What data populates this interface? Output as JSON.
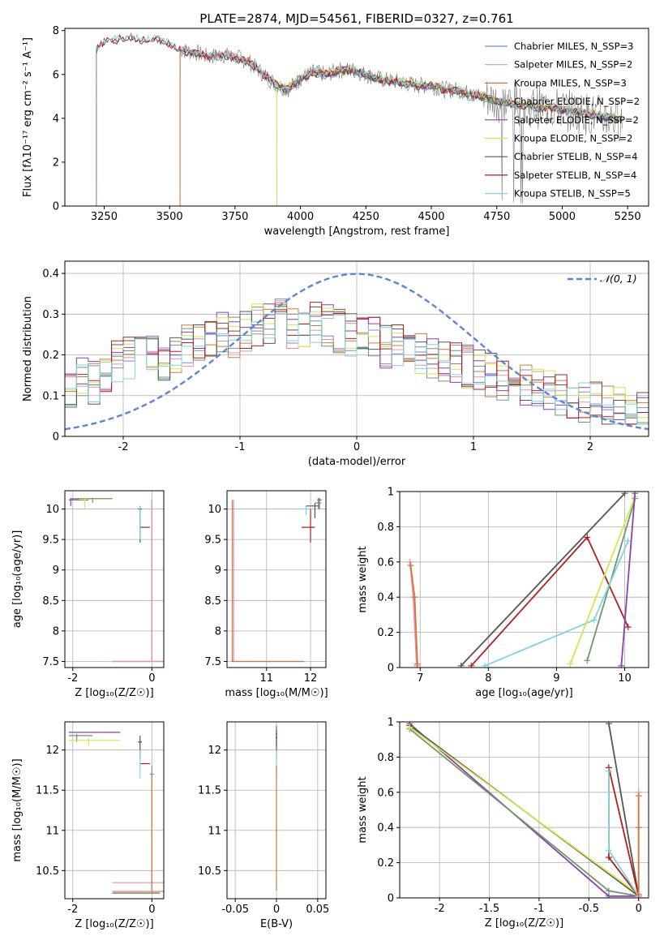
{
  "figure": {
    "title": "PLATE=2874, MJD=54561, FIBERID=0327, z=0.761"
  },
  "chart_data": [
    {
      "type": "line",
      "panel": "spectrum",
      "xlabel": "wavelength [Angstrom, rest frame]",
      "ylabel": "Flux [fλ10⁻¹⁷ erg cm⁻² s⁻¹ A⁻¹]",
      "xlim": [
        3100,
        5330
      ],
      "ylim": [
        0,
        8.1
      ],
      "xticks": [
        3250,
        3500,
        3750,
        4000,
        4250,
        4500,
        4750,
        5000,
        5250
      ],
      "yticks": [
        0,
        2,
        4,
        6,
        8
      ],
      "legend_position": "top-right",
      "grid": false,
      "series": [
        {
          "name": "Chabrier MILES, N_SSP=3",
          "color": "#6f8fd6",
          "start": 3540
        },
        {
          "name": "Salpeter MILES, N_SSP=2",
          "color": "#e58fb0",
          "start": 3540
        },
        {
          "name": "Kroupa MILES, N_SSP=3",
          "color": "#d07a3a",
          "start": 3540
        },
        {
          "name": "Chabrier ELODIE, N_SSP=2",
          "color": "#6a9a6a",
          "start": 3910
        },
        {
          "name": "Salpeter ELODIE, N_SSP=2",
          "color": "#8e3fb0",
          "start": 3910
        },
        {
          "name": "Kroupa ELODIE, N_SSP=2",
          "color": "#d6e64a",
          "start": 3910
        },
        {
          "name": "Chabrier STELIB, N_SSP=4",
          "color": "#555555",
          "start": 3220
        },
        {
          "name": "Salpeter STELIB, N_SSP=4",
          "color": "#b51d1d",
          "start": 3220
        },
        {
          "name": "Kroupa STELIB, N_SSP=5",
          "color": "#7fd3e0",
          "start": 3220
        }
      ],
      "continuum": {
        "x": [
          3220,
          3250,
          3300,
          3350,
          3400,
          3450,
          3500,
          3550,
          3600,
          3650,
          3700,
          3750,
          3800,
          3850,
          3900,
          3950,
          4000,
          4050,
          4100,
          4150,
          4200,
          4250,
          4300,
          4350,
          4400,
          4450,
          4500,
          4550,
          4600,
          4650,
          4700,
          4750,
          4800,
          4850,
          4900,
          4950,
          5000,
          5050,
          5100,
          5150,
          5200,
          5230
        ],
        "y": [
          7.1,
          7.5,
          7.6,
          7.7,
          7.6,
          7.6,
          7.4,
          7.1,
          7.0,
          6.8,
          6.9,
          6.8,
          6.6,
          6.1,
          5.6,
          5.3,
          5.8,
          6.1,
          6.0,
          6.2,
          6.2,
          6.0,
          5.8,
          5.7,
          5.6,
          5.5,
          5.5,
          5.3,
          5.3,
          5.1,
          5.0,
          4.8,
          4.7,
          4.6,
          4.5,
          4.5,
          4.4,
          4.3,
          4.2,
          4.1,
          4.0,
          3.9
        ]
      },
      "data_note": ""
    },
    {
      "type": "line",
      "panel": "residuals",
      "xlabel": "(data-model)/error",
      "ylabel": "Normed distribution",
      "xlim": [
        -2.5,
        2.5
      ],
      "ylim": [
        0,
        0.43
      ],
      "xticks": [
        -2,
        -1,
        0,
        1,
        2
      ],
      "yticks": [
        0.0,
        0.1,
        0.2,
        0.3,
        0.4
      ],
      "grid": true,
      "legend_position": "top-right",
      "gaussian_label": "𝒩(0, 1)",
      "gaussian_color": "#5b86d8",
      "bins": [
        -2.5,
        -2.4,
        -2.3,
        -2.2,
        -2.1,
        -2.0,
        -1.9,
        -1.8,
        -1.7,
        -1.6,
        -1.5,
        -1.4,
        -1.3,
        -1.2,
        -1.1,
        -1.0,
        -0.9,
        -0.8,
        -0.7,
        -0.6,
        -0.5,
        -0.4,
        -0.3,
        -0.2,
        -0.1,
        0.0,
        0.1,
        0.2,
        0.3,
        0.4,
        0.5,
        0.6,
        0.7,
        0.8,
        0.9,
        1.0,
        1.1,
        1.2,
        1.3,
        1.4,
        1.5,
        1.6,
        1.7,
        1.8,
        1.9,
        2.0,
        2.1,
        2.2,
        2.3,
        2.4
      ],
      "histogram_base": [
        0.1,
        0.14,
        0.13,
        0.16,
        0.18,
        0.19,
        0.21,
        0.2,
        0.19,
        0.2,
        0.22,
        0.24,
        0.24,
        0.25,
        0.24,
        0.26,
        0.27,
        0.28,
        0.29,
        0.27,
        0.27,
        0.28,
        0.27,
        0.26,
        0.25,
        0.25,
        0.24,
        0.22,
        0.22,
        0.21,
        0.2,
        0.19,
        0.19,
        0.18,
        0.17,
        0.16,
        0.15,
        0.14,
        0.13,
        0.12,
        0.12,
        0.11,
        0.1,
        0.09,
        0.08,
        0.08,
        0.07,
        0.07,
        0.06,
        0.06
      ],
      "histogram_colors": [
        "#6f8fd6",
        "#e58fb0",
        "#d07a3a",
        "#6a9a6a",
        "#8e3fb0",
        "#d6e64a",
        "#555555",
        "#b51d1d",
        "#7fd3e0"
      ]
    },
    {
      "type": "scatter",
      "panel": "age-vs-Z",
      "xlabel": "Z [log₁₀(Z/Z☉)]",
      "ylabel": "age [log₁₀(age/yr)]",
      "xlim": [
        -2.2,
        0.3
      ],
      "ylim": [
        7.4,
        10.3
      ],
      "xticks": [
        -2,
        0
      ],
      "yticks": [
        7.5,
        8.0,
        8.5,
        9.0,
        9.5,
        10.0
      ],
      "grid": true
    },
    {
      "type": "scatter",
      "panel": "age-vs-mass",
      "xlabel": "mass [log₁₀(M/M☉)]",
      "ylabel": "",
      "xlim": [
        10.1,
        12.35
      ],
      "ylim": [
        7.4,
        10.3
      ],
      "xticks": [
        11,
        12
      ],
      "yticks": [
        7.5,
        8.0,
        8.5,
        9.0,
        9.5,
        10.0
      ],
      "grid": true
    },
    {
      "type": "line",
      "panel": "weight-vs-age",
      "xlabel": "age [log₁₀(age/yr)]",
      "ylabel": "mass weight",
      "xlim": [
        6.7,
        10.35
      ],
      "ylim": [
        0,
        1.0
      ],
      "xticks": [
        7,
        8,
        9,
        10
      ],
      "yticks": [
        0.0,
        0.2,
        0.4,
        0.6,
        0.8,
        1.0
      ],
      "grid": true,
      "series": [
        {
          "color": "#e58fb0",
          "x": [
            6.85,
            6.9,
            6.95
          ],
          "y": [
            0.6,
            0.4,
            0.01
          ]
        },
        {
          "color": "#d07a3a",
          "x": [
            6.86,
            6.92,
            6.96
          ],
          "y": [
            0.58,
            0.4,
            0.02
          ]
        },
        {
          "color": "#b51d1d",
          "x": [
            7.75,
            9.45,
            10.05
          ],
          "y": [
            0.01,
            0.74,
            0.23
          ]
        },
        {
          "color": "#555555",
          "x": [
            7.6,
            10.0
          ],
          "y": [
            0.01,
            0.99
          ]
        },
        {
          "color": "#6a9a6a",
          "x": [
            9.45,
            10.15
          ],
          "y": [
            0.04,
            0.96
          ]
        },
        {
          "color": "#7fd3e0",
          "x": [
            7.95,
            9.55,
            10.05
          ],
          "y": [
            0.01,
            0.27,
            0.72
          ]
        },
        {
          "color": "#d6e64a",
          "x": [
            9.2,
            10.15
          ],
          "y": [
            0.02,
            0.97
          ]
        },
        {
          "color": "#8e3fb0",
          "x": [
            9.95,
            10.15
          ],
          "y": [
            0.01,
            0.99
          ]
        }
      ]
    },
    {
      "type": "scatter",
      "panel": "mass-vs-Z",
      "xlabel": "Z [log₁₀(Z/Z☉)]",
      "ylabel": "mass [log₁₀(M/M☉)]",
      "xlim": [
        -2.2,
        0.3
      ],
      "ylim": [
        10.15,
        12.35
      ],
      "xticks": [
        -2,
        0
      ],
      "yticks": [
        10.5,
        11.0,
        11.5,
        12.0
      ],
      "grid": true
    },
    {
      "type": "scatter",
      "panel": "mass-vs-ebv",
      "xlabel": "E(B-V)",
      "ylabel": "",
      "xlim": [
        -0.06,
        0.06
      ],
      "ylim": [
        10.15,
        12.35
      ],
      "xticks": [
        -0.05,
        0.0,
        0.05
      ],
      "yticks": [
        10.5,
        11.0,
        11.5,
        12.0
      ],
      "grid": true
    },
    {
      "type": "line",
      "panel": "weight-vs-Z",
      "xlabel": "Z [log₁₀(Z/Z☉)]",
      "ylabel": "mass weight",
      "xlim": [
        -2.4,
        0.1
      ],
      "ylim": [
        0,
        1.0
      ],
      "xticks": [
        -2.0,
        -1.5,
        -1.0,
        -0.5,
        0.0
      ],
      "yticks": [
        0.0,
        0.2,
        0.4,
        0.6,
        0.8,
        1.0
      ],
      "grid": true,
      "series": [
        {
          "color": "#8e3fb0",
          "x": [
            -2.3,
            -0.3,
            0.0
          ],
          "y": [
            0.99,
            0.01,
            0.01
          ]
        },
        {
          "color": "#555555",
          "x": [
            -2.3,
            0.0,
            -0.3
          ],
          "y": [
            0.98,
            0.01,
            0.99
          ]
        },
        {
          "color": "#6a9a6a",
          "x": [
            -2.3,
            -0.3,
            0.0
          ],
          "y": [
            0.96,
            0.04,
            0.01
          ]
        },
        {
          "color": "#d6e64a",
          "x": [
            -2.3,
            0.0
          ],
          "y": [
            0.97,
            0.02
          ]
        },
        {
          "color": "#b51d1d",
          "x": [
            -0.3,
            -0.3,
            0.0,
            -0.3
          ],
          "y": [
            0.74,
            0.23,
            0.01,
            0.74
          ]
        },
        {
          "color": "#7fd3e0",
          "x": [
            -0.3,
            -0.3,
            0.0
          ],
          "y": [
            0.72,
            0.27,
            0.01
          ]
        },
        {
          "color": "#e58fb0",
          "x": [
            0.0,
            0.0,
            0.0
          ],
          "y": [
            0.6,
            0.4,
            0.01
          ]
        },
        {
          "color": "#d07a3a",
          "x": [
            0.0,
            0.0,
            0.0
          ],
          "y": [
            0.58,
            0.4,
            0.02
          ]
        }
      ]
    }
  ]
}
